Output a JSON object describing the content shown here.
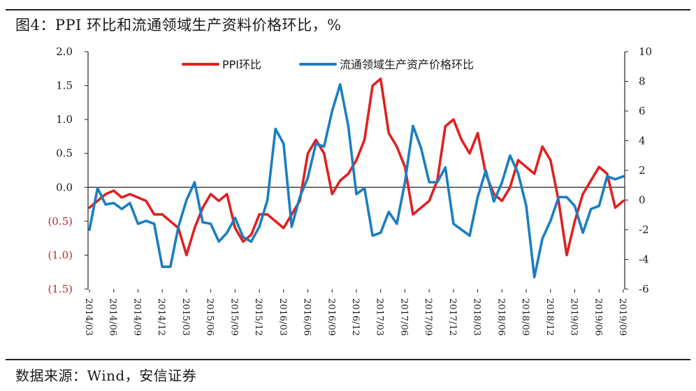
{
  "header": {
    "title": "图4：PPI 环比和流通领域生产资料价格环比，%"
  },
  "footer": {
    "source": "数据来源：Wind，安信证券"
  },
  "colors": {
    "series_red": "#e02020",
    "series_blue": "#1a7ec2",
    "axis": "#222222",
    "negative_label": "#c0272d"
  },
  "chart_data": {
    "type": "line",
    "title": "PPI 环比和流通领域生产资料价格环比，%",
    "left_axis": {
      "ylim": [
        -1.5,
        2.0
      ],
      "ticks": [
        2.0,
        1.5,
        1.0,
        0.5,
        0.0,
        -0.5,
        -1.0,
        -1.5
      ],
      "tick_labels": [
        "2.0",
        "1.5",
        "1.0",
        "0.5",
        "0.0",
        "(0.5)",
        "(1.0)",
        "(1.5)"
      ]
    },
    "right_axis": {
      "ylim": [
        -6,
        10
      ],
      "ticks": [
        10,
        8,
        6,
        4,
        2,
        0,
        -2,
        -4,
        -6
      ],
      "tick_labels": [
        "10",
        "8",
        "6",
        "4",
        "2",
        "0",
        "-2",
        "-4",
        "-6"
      ]
    },
    "x_tick_labels": [
      "2014/03",
      "2014/06",
      "2014/09",
      "2014/12",
      "2015/03",
      "2015/06",
      "2015/09",
      "2015/12",
      "2016/03",
      "2016/06",
      "2016/09",
      "2016/12",
      "2017/03",
      "2017/06",
      "2017/09",
      "2017/12",
      "2018/03",
      "2018/06",
      "2018/09",
      "2018/12",
      "2019/03",
      "2019/06",
      "2019/09"
    ],
    "x_tick_start_index": 0,
    "x_tick_step": 3,
    "num_points": 67,
    "series": [
      {
        "name": "PPI环比",
        "axis": "left",
        "color": "#e02020",
        "values": [
          -0.3,
          -0.2,
          -0.1,
          -0.05,
          -0.15,
          -0.1,
          -0.15,
          -0.2,
          -0.4,
          -0.4,
          -0.5,
          -0.6,
          -1.0,
          -0.6,
          -0.3,
          -0.1,
          -0.2,
          -0.1,
          -0.6,
          -0.8,
          -0.7,
          -0.4,
          -0.4,
          -0.5,
          -0.6,
          -0.4,
          -0.2,
          0.5,
          0.7,
          0.5,
          -0.1,
          0.1,
          0.2,
          0.4,
          0.7,
          1.5,
          1.6,
          0.8,
          0.6,
          0.3,
          -0.4,
          -0.3,
          -0.2,
          0.1,
          0.9,
          1.0,
          0.7,
          0.5,
          0.8,
          0.2,
          -0.1,
          -0.2,
          0.0,
          0.4,
          0.3,
          0.2,
          0.6,
          0.4,
          -0.2,
          -1.0,
          -0.5,
          -0.1,
          0.1,
          0.3,
          0.2,
          -0.3,
          -0.2
        ]
      },
      {
        "name": "流通领域生产资产价格环比",
        "axis": "right",
        "color": "#1a7ec2",
        "values": [
          -2.0,
          0.8,
          -0.3,
          -0.2,
          -0.6,
          -0.2,
          -1.6,
          -1.4,
          -1.6,
          -4.5,
          -4.5,
          -1.8,
          0.0,
          1.2,
          -1.5,
          -1.6,
          -2.8,
          -2.2,
          -1.2,
          -2.5,
          -2.8,
          -1.8,
          0.0,
          4.8,
          3.8,
          -1.8,
          0.2,
          1.5,
          3.8,
          3.6,
          6.0,
          7.8,
          5.0,
          0.4,
          0.8,
          -2.4,
          -2.2,
          -0.8,
          -1.6,
          1.2,
          5.0,
          3.5,
          1.2,
          1.2,
          2.2,
          -1.6,
          -2.0,
          -2.4,
          0.2,
          2.0,
          -0.1,
          1.2,
          3.0,
          1.8,
          -0.4,
          -5.2,
          -2.6,
          -1.4,
          0.2,
          0.2,
          -0.4,
          -2.2,
          -0.6,
          -0.4,
          1.6,
          1.4,
          1.6
        ]
      }
    ],
    "legend": {
      "position": "top-center",
      "entries": [
        "PPI环比",
        "流通领域生产资产价格环比"
      ]
    }
  }
}
